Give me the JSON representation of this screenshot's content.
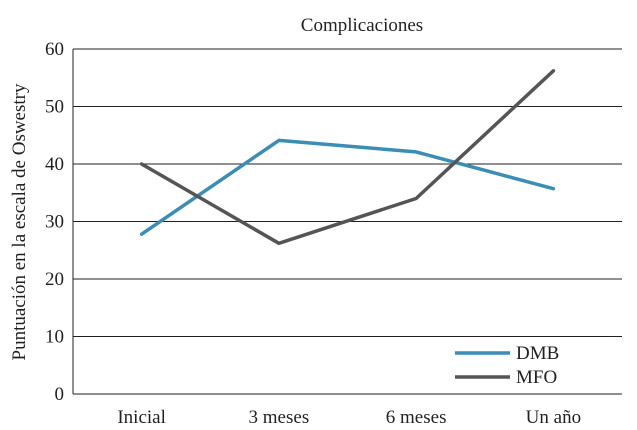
{
  "chart_data": {
    "type": "line",
    "title": "Complicaciones",
    "xlabel": "",
    "ylabel": "Puntuación en la escala de Oswestry",
    "categories": [
      "Inicial",
      "3 meses",
      "6 meses",
      "Un año"
    ],
    "ylim": [
      0,
      60
    ],
    "yticks": [
      0,
      10,
      20,
      30,
      40,
      50,
      60
    ],
    "grid": true,
    "legend_position": "bottom-right",
    "series": [
      {
        "name": "DMB",
        "values": [
          27.8,
          44.1,
          42.1,
          35.7
        ],
        "color": "#3a8db4"
      },
      {
        "name": "MFO",
        "values": [
          40.0,
          26.2,
          34.0,
          56.2
        ],
        "color": "#555555"
      }
    ]
  }
}
